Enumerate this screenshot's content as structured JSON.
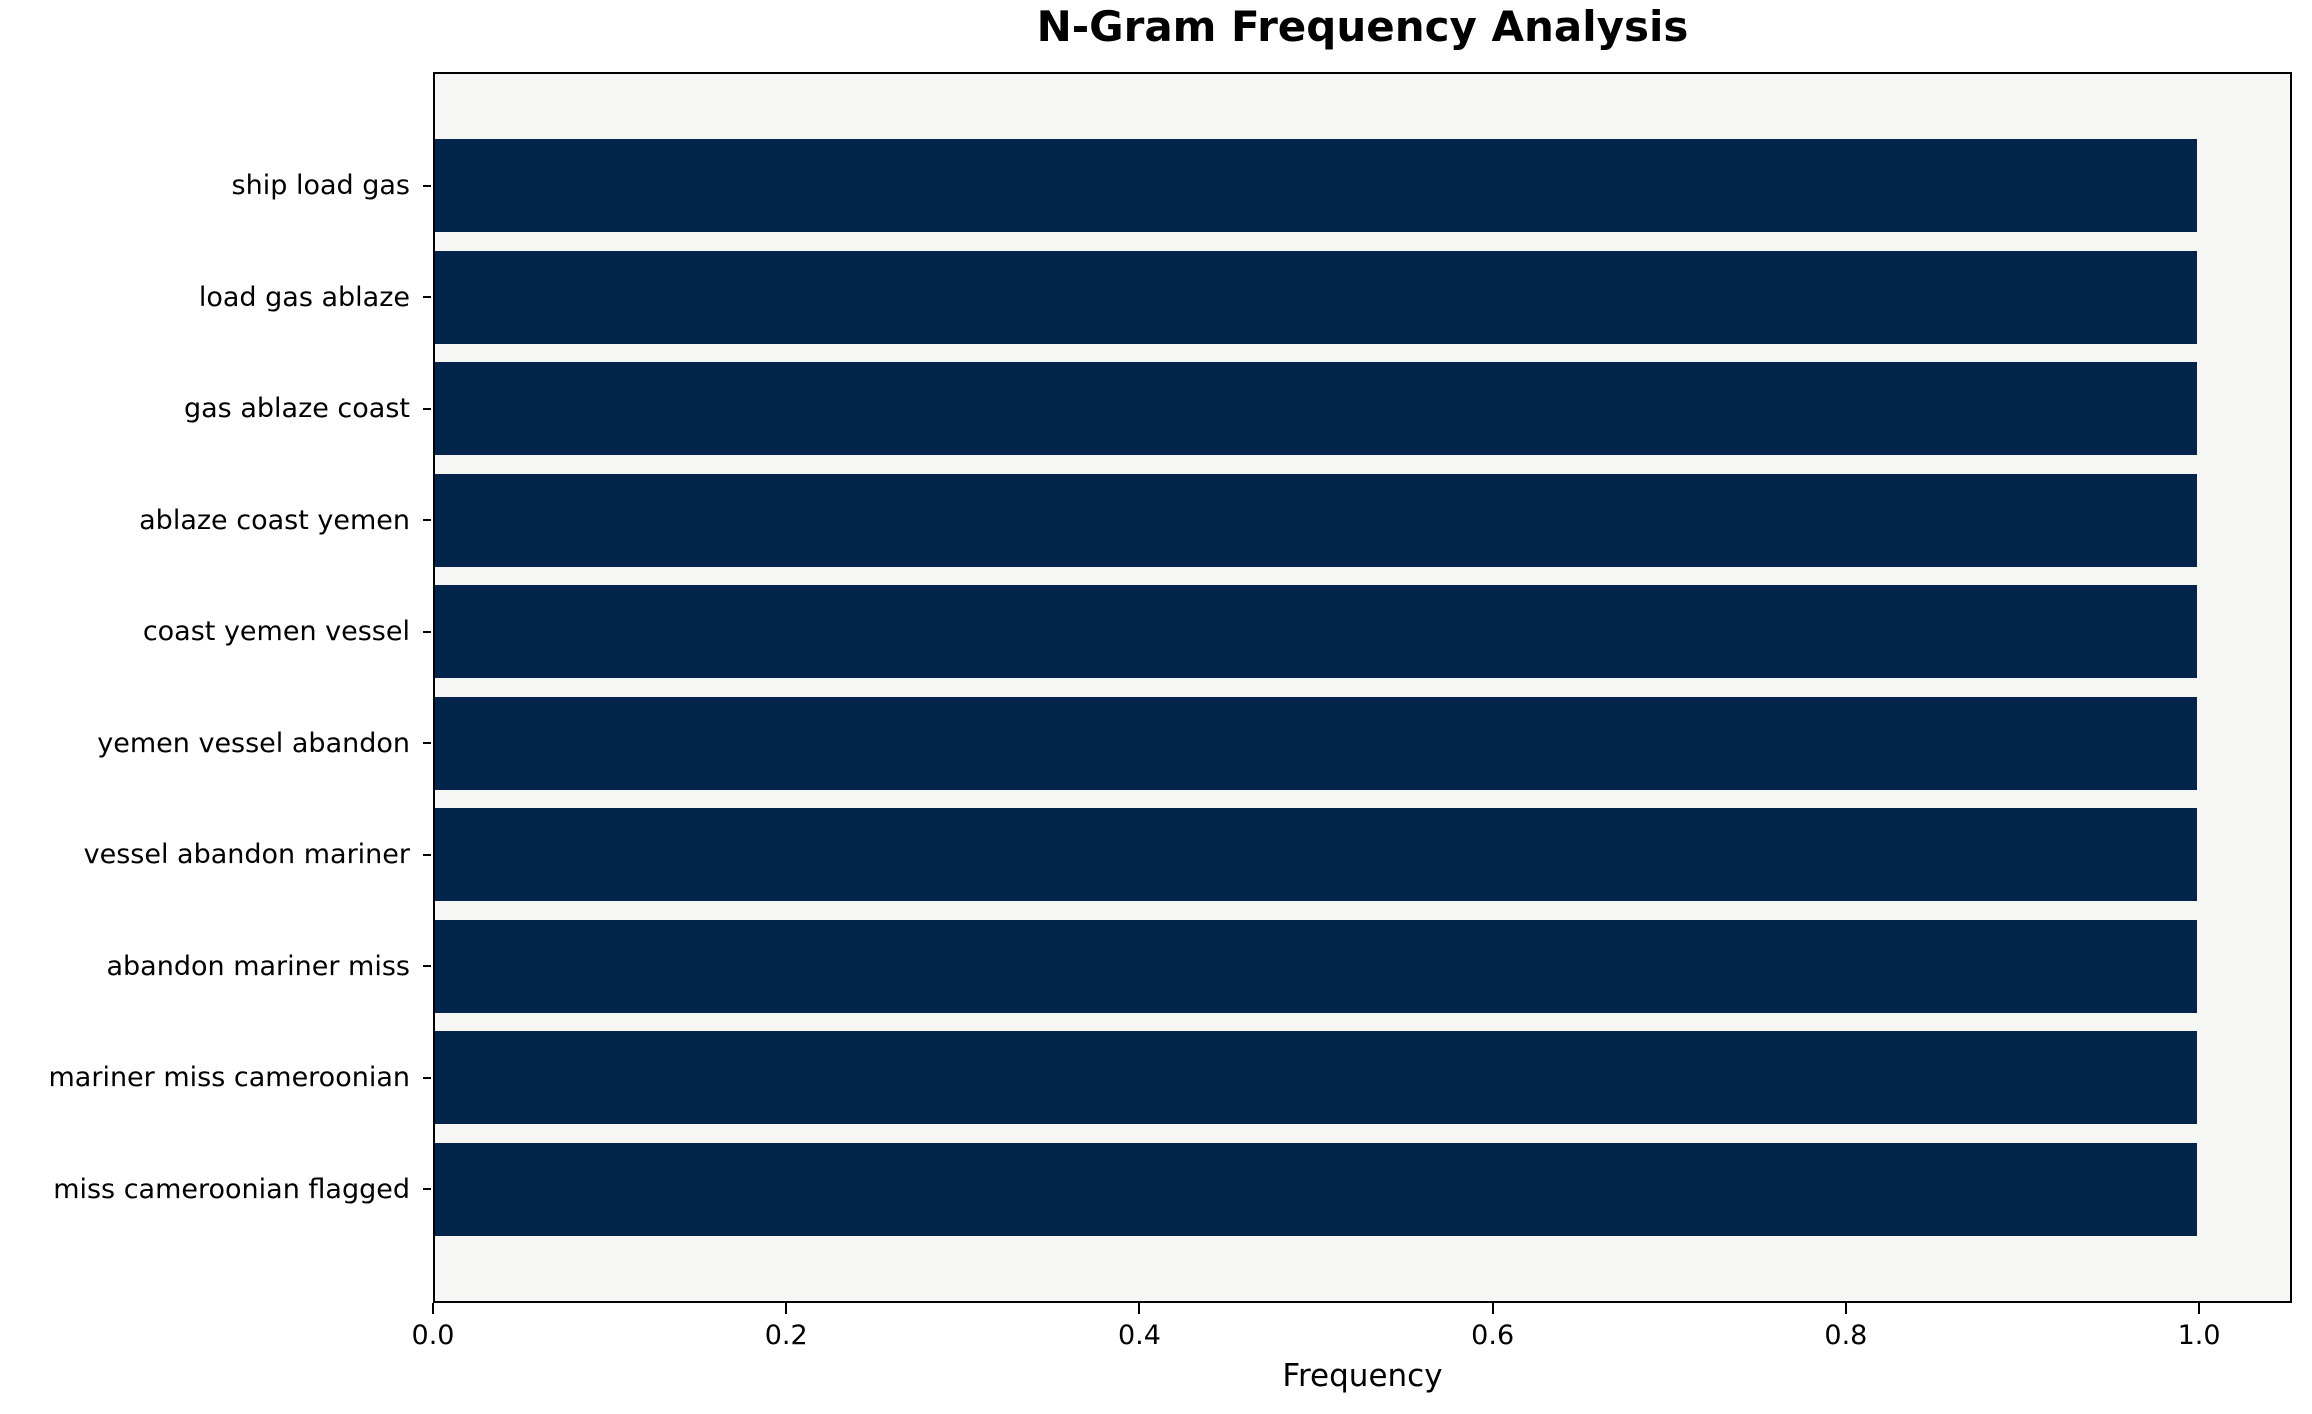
{
  "title": "N-Gram Frequency Analysis",
  "chart_data": {
    "type": "bar",
    "orientation": "horizontal",
    "title": "N-Gram Frequency Analysis",
    "xlabel": "Frequency",
    "ylabel": "",
    "categories": [
      "ship load gas",
      "load gas ablaze",
      "gas ablaze coast",
      "ablaze coast yemen",
      "coast yemen vessel",
      "yemen vessel abandon",
      "vessel abandon mariner",
      "abandon mariner miss",
      "mariner miss cameroonian",
      "miss cameroonian flagged"
    ],
    "values": [
      1.0,
      1.0,
      1.0,
      1.0,
      1.0,
      1.0,
      1.0,
      1.0,
      1.0,
      1.0
    ],
    "xticks": [
      0.0,
      0.2,
      0.4,
      0.6,
      0.8,
      1.0
    ],
    "xtick_labels": [
      "0.0",
      "0.2",
      "0.4",
      "0.6",
      "0.8",
      "1.0"
    ],
    "xlim": [
      0.0,
      1.0526
    ],
    "grid": false,
    "legend_position": "none",
    "bar_color": "#03254c",
    "plot_background": "#f6f6f4",
    "figure_background": "#ffffff",
    "spine_color": "#000000"
  }
}
